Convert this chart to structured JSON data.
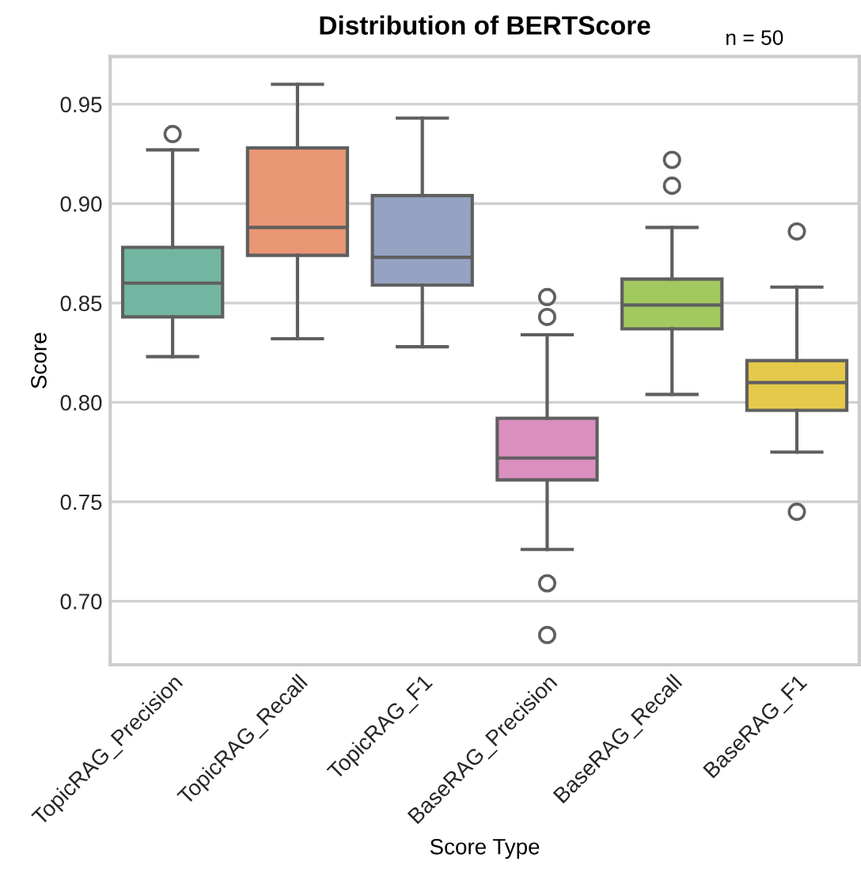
{
  "chart_data": {
    "type": "box",
    "title": "Distribution of BERTScore",
    "xlabel": "Score Type",
    "ylabel": "Score",
    "annotations": [
      "n = 50"
    ],
    "categories": [
      "TopicRAG_Precision",
      "TopicRAG_Recall",
      "TopicRAG_F1",
      "BaseRAG_Precision",
      "BaseRAG_Recall",
      "BaseRAG_F1"
    ],
    "colors": [
      "#72b6a1",
      "#e99675",
      "#95a3c3",
      "#da8fbf",
      "#a1c95f",
      "#e5c94a"
    ],
    "boxes": [
      {
        "low": 0.823,
        "q1": 0.843,
        "median": 0.86,
        "q3": 0.878,
        "high": 0.927,
        "outliers": [
          0.935
        ]
      },
      {
        "low": 0.832,
        "q1": 0.874,
        "median": 0.888,
        "q3": 0.928,
        "high": 0.96
      },
      {
        "low": 0.828,
        "q1": 0.859,
        "median": 0.873,
        "q3": 0.904,
        "high": 0.943
      },
      {
        "low": 0.726,
        "q1": 0.761,
        "median": 0.772,
        "q3": 0.792,
        "high": 0.834,
        "outliers": [
          0.853,
          0.843,
          0.709,
          0.683
        ]
      },
      {
        "low": 0.804,
        "q1": 0.837,
        "median": 0.849,
        "q3": 0.862,
        "high": 0.888,
        "outliers": [
          0.922,
          0.909
        ]
      },
      {
        "low": 0.775,
        "q1": 0.796,
        "median": 0.81,
        "q3": 0.821,
        "high": 0.858,
        "outliers": [
          0.886,
          0.745
        ]
      }
    ],
    "ylim": [
      0.668,
      0.974
    ],
    "yticks": [
      {
        "value": 0.7,
        "label": "0.70"
      },
      0.75,
      {
        "value": 0.8,
        "label": "0.80"
      },
      0.85,
      {
        "value": 0.9,
        "label": "0.90"
      },
      0.95
    ],
    "grid": "y"
  }
}
